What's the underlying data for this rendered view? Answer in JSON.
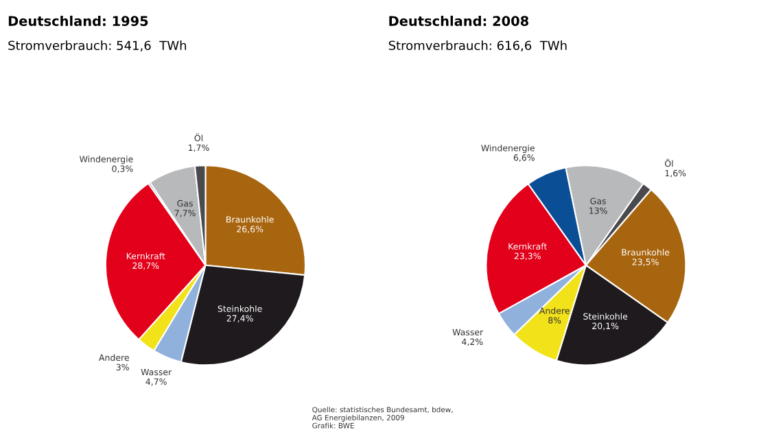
{
  "chart_data": [
    {
      "type": "pie",
      "title": "Deutschland: 1995",
      "subtitle": "Stromverbrauch: 541,6  TWh",
      "categories": [
        "Braunkohle",
        "Steinkohle",
        "Wasser",
        "Andere",
        "Kernkraft",
        "Windenergie",
        "Gas",
        "Öl"
      ],
      "values": [
        26.6,
        27.4,
        4.7,
        3,
        28.7,
        0.3,
        7.7,
        1.7
      ],
      "value_labels": [
        "26,6%",
        "27,4%",
        "4,7%",
        "3%",
        "28,7%",
        "0,3%",
        "7,7%",
        "1,7%"
      ],
      "colors": [
        "#a8650f",
        "#1e1a1d",
        "#8fb1dc",
        "#f2e21a",
        "#e2001a",
        "#0a4f96",
        "#b8b9bb",
        "#4a4a4e"
      ]
    },
    {
      "type": "pie",
      "title": "Deutschland: 2008",
      "subtitle": "Stromverbrauch: 616,6  TWh",
      "categories": [
        "Öl",
        "Braunkohle",
        "Steinkohle",
        "Andere",
        "Wasser",
        "Kernkraft",
        "Windenergie",
        "Gas"
      ],
      "values": [
        1.6,
        23.5,
        20.1,
        8,
        4.2,
        23.3,
        6.6,
        13
      ],
      "value_labels": [
        "1,6%",
        "23,5%",
        "20,1%",
        "8%",
        "4,2%",
        "23,3%",
        "6,6%",
        "13%"
      ],
      "colors": [
        "#4a4a4e",
        "#a8650f",
        "#1e1a1d",
        "#f2e21a",
        "#8fb1dc",
        "#e2001a",
        "#0a4f96",
        "#b8b9bb"
      ],
      "annotations": [
        "Quelle: statistisches Bundesamt, bdew,\nAG Energiebilanzen, 2009\nGrafik: BWE"
      ]
    }
  ]
}
